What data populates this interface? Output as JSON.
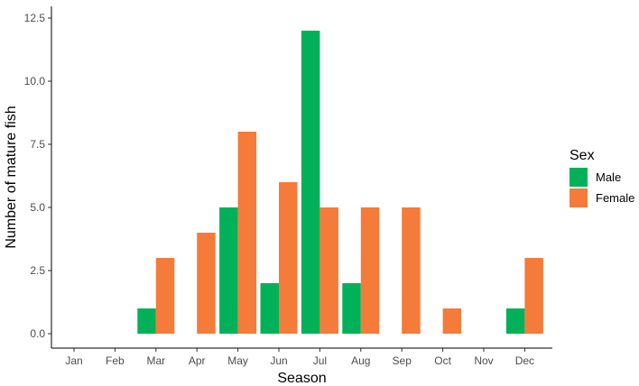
{
  "chart_data": {
    "type": "bar",
    "title": "",
    "xlabel": "Season",
    "ylabel": "Number of mature fish",
    "categories": [
      "Jan",
      "Feb",
      "Mar",
      "Apr",
      "May",
      "Jun",
      "Jul",
      "Aug",
      "Sep",
      "Oct",
      "Nov",
      "Dec"
    ],
    "series": [
      {
        "name": "Male",
        "color": "#00b15a",
        "values": [
          0,
          0,
          1,
          0,
          5,
          2,
          12,
          2,
          0,
          0,
          0,
          1
        ]
      },
      {
        "name": "Female",
        "color": "#f47b3a",
        "values": [
          0,
          0,
          3,
          4,
          8,
          6,
          5,
          5,
          5,
          1,
          0,
          3
        ]
      }
    ],
    "ylim": [
      0,
      12.5
    ],
    "yticks": [
      0,
      2.5,
      5,
      7.5,
      10,
      12.5
    ],
    "ytick_labels": [
      "0.0",
      "2.5",
      "5.0",
      "7.5",
      "10.0",
      "12.5"
    ],
    "legend": {
      "title": "Sex",
      "position": "right"
    },
    "grid": false
  }
}
